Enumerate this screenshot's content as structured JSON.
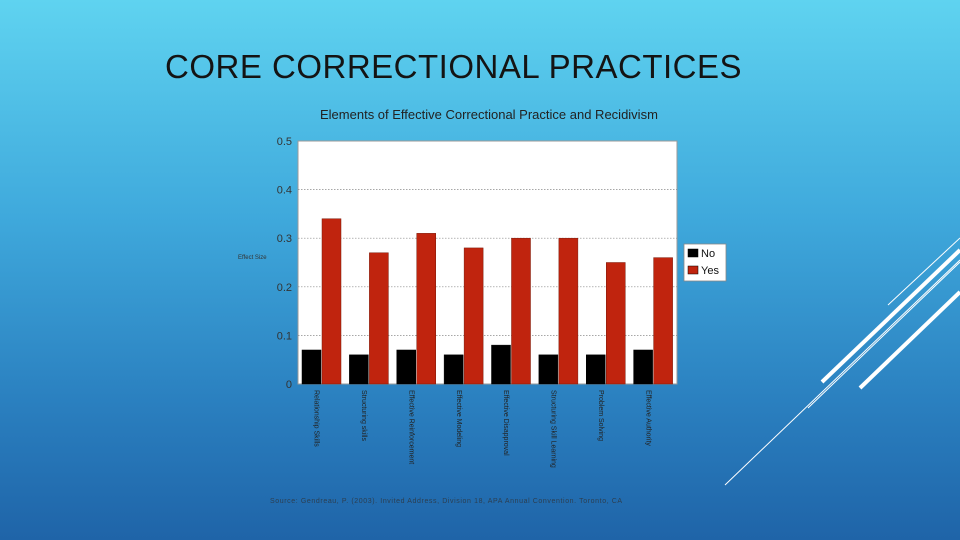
{
  "slide": {
    "title": "CORE CORRECTIONAL PRACTICES"
  },
  "chart_data": {
    "type": "bar",
    "title": "Elements of Effective Correctional Practice and Recidivism",
    "ylabel": "Effect Size",
    "xlabel": "",
    "ylim": [
      0,
      0.5
    ],
    "yticks": [
      "0",
      "0.1",
      "0.2",
      "0.3",
      "0.4",
      "0.5"
    ],
    "grid": true,
    "legend_position": "right",
    "categories": [
      "Relationship Skills",
      "Structuring skills",
      "Effective Reinforcement",
      "Effective Modeling",
      "Effective Disapproval",
      "Structuring Skill Learning",
      "Problem Solving",
      "Effective Authority"
    ],
    "series": [
      {
        "name": "No",
        "color": "#000000",
        "values": [
          0.07,
          0.06,
          0.07,
          0.06,
          0.08,
          0.06,
          0.06,
          0.07
        ]
      },
      {
        "name": "Yes",
        "color": "#c0240e",
        "values": [
          0.34,
          0.27,
          0.31,
          0.28,
          0.3,
          0.3,
          0.25,
          0.26
        ]
      }
    ],
    "source": "Source: Gendreau, P. (2003). Invited Address, Division 18, APA Annual Convention. Toronto, CA"
  }
}
